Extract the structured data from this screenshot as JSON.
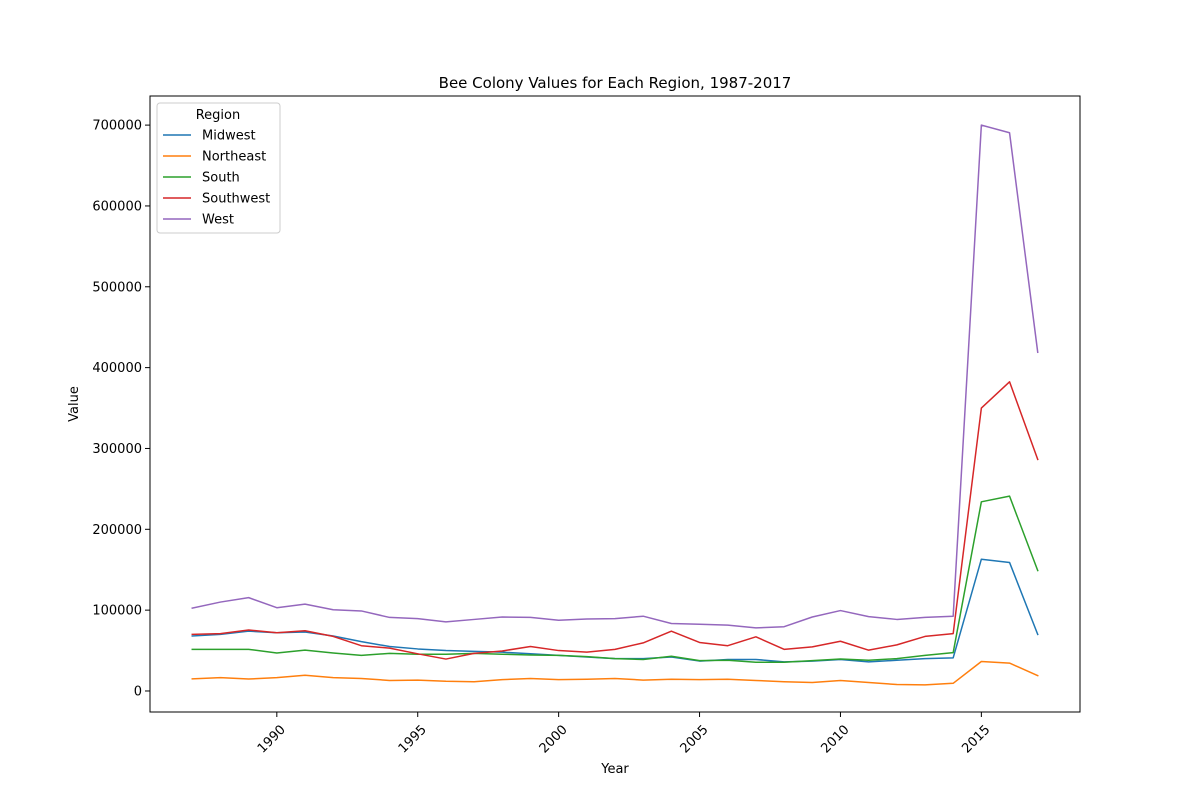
{
  "chart_data": {
    "type": "line",
    "title": "Bee Colony Values for Each Region, 1987-2017",
    "xlabel": "Year",
    "ylabel": "Value",
    "xlim": [
      1985.5,
      2018.5
    ],
    "ylim": [
      -26000,
      736000
    ],
    "x_ticks": [
      1990,
      1995,
      2000,
      2005,
      2010,
      2015
    ],
    "y_ticks": [
      0,
      100000,
      200000,
      300000,
      400000,
      500000,
      600000,
      700000
    ],
    "x_tick_rotation": 45,
    "grid": false,
    "legend": {
      "title": "Region",
      "position": "top-left"
    },
    "x": [
      1987,
      1988,
      1989,
      1990,
      1991,
      1992,
      1993,
      1994,
      1995,
      1996,
      1997,
      1998,
      1999,
      2000,
      2001,
      2002,
      2003,
      2004,
      2005,
      2006,
      2007,
      2008,
      2009,
      2010,
      2011,
      2012,
      2013,
      2014,
      2015,
      2016,
      2017
    ],
    "series": [
      {
        "name": "Midwest",
        "color": "#1f77b4",
        "values": [
          68000,
          70000,
          74000,
          72000,
          73000,
          68000,
          61000,
          55000,
          52000,
          50000,
          49000,
          48000,
          46000,
          44000,
          42000,
          40000,
          40000,
          42000,
          37000,
          39000,
          39000,
          36000,
          37000,
          39000,
          36000,
          38000,
          40000,
          41000,
          163000,
          159000,
          70000
        ]
      },
      {
        "name": "Northeast",
        "color": "#ff7f0e",
        "values": [
          15000,
          16500,
          14800,
          16500,
          19500,
          16500,
          15500,
          13000,
          13500,
          12000,
          11500,
          14000,
          15500,
          14000,
          14500,
          15500,
          13500,
          14500,
          14000,
          14500,
          13000,
          11500,
          10500,
          13000,
          10500,
          8000,
          7500,
          9500,
          36500,
          34500,
          19000
        ]
      },
      {
        "name": "South",
        "color": "#2ca02c",
        "values": [
          51500,
          51500,
          51500,
          47000,
          50500,
          47000,
          44000,
          46500,
          45500,
          45500,
          46500,
          45500,
          44500,
          44000,
          42500,
          40000,
          39000,
          43000,
          37500,
          38000,
          35500,
          35500,
          37500,
          39500,
          38000,
          40000,
          44000,
          47500,
          234000,
          241000,
          149000
        ]
      },
      {
        "name": "Southwest",
        "color": "#d62728",
        "values": [
          70000,
          71000,
          75500,
          72000,
          74500,
          67500,
          56000,
          53000,
          46000,
          39500,
          46500,
          49500,
          55000,
          50000,
          48000,
          51500,
          59500,
          74000,
          60000,
          56000,
          67000,
          51500,
          54500,
          61500,
          50500,
          57000,
          67500,
          71000,
          350000,
          382500,
          286500
        ]
      },
      {
        "name": "West",
        "color": "#9467bd",
        "values": [
          102500,
          110000,
          115500,
          103000,
          107500,
          100500,
          99000,
          91000,
          89500,
          85500,
          88500,
          91500,
          91000,
          87500,
          89000,
          89500,
          92500,
          83500,
          82500,
          81500,
          78000,
          79500,
          91500,
          99500,
          92000,
          88500,
          91000,
          92500,
          700000,
          690500,
          419000
        ]
      }
    ]
  }
}
